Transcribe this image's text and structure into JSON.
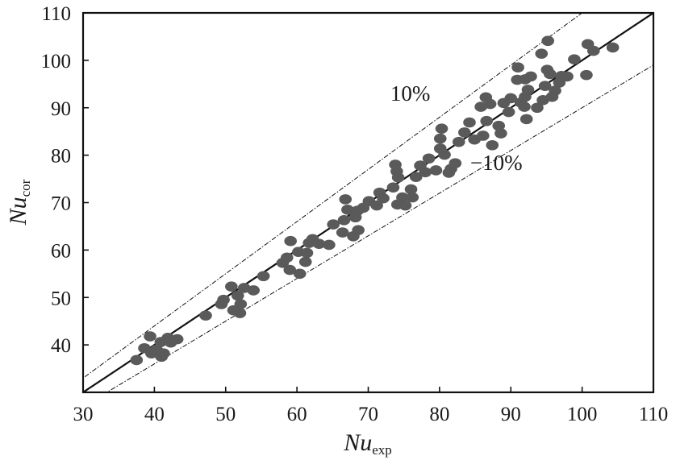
{
  "chart_data": {
    "type": "scatter",
    "xlabel": {
      "main": "Nu",
      "sub": "exp"
    },
    "ylabel": {
      "main": "Nu",
      "sub": "cor"
    },
    "xlim": [
      30,
      110
    ],
    "ylim": [
      30,
      110
    ],
    "x_ticks": [
      30,
      40,
      50,
      60,
      70,
      80,
      90,
      100,
      110
    ],
    "y_ticks": [
      40,
      50,
      60,
      70,
      80,
      90,
      100,
      110
    ],
    "grid": false,
    "colors": {
      "points": "#5a5a5a",
      "lines": "#111111",
      "frame": "#111111"
    },
    "reference_lines": [
      {
        "label": "",
        "slope": 1.0,
        "style": "solid"
      },
      {
        "label": "10%",
        "slope": 1.1,
        "style": "dash-dot"
      },
      {
        "label": "−10%",
        "slope": 0.9,
        "style": "dash-dot"
      }
    ],
    "points": [
      [
        37.5,
        36.8
      ],
      [
        38.6,
        39.3
      ],
      [
        39.4,
        41.8
      ],
      [
        39.6,
        38.2
      ],
      [
        40.3,
        39.0
      ],
      [
        40.9,
        40.6
      ],
      [
        41.0,
        37.5
      ],
      [
        41.3,
        38.2
      ],
      [
        41.9,
        41.5
      ],
      [
        42.3,
        40.5
      ],
      [
        43.2,
        41.2
      ],
      [
        47.2,
        46.2
      ],
      [
        49.4,
        48.6
      ],
      [
        49.7,
        49.5
      ],
      [
        50.8,
        52.3
      ],
      [
        51.1,
        47.3
      ],
      [
        51.7,
        50.4
      ],
      [
        52.0,
        46.7
      ],
      [
        52.1,
        48.6
      ],
      [
        52.6,
        52.0
      ],
      [
        53.9,
        51.5
      ],
      [
        55.3,
        54.5
      ],
      [
        58.0,
        57.3
      ],
      [
        58.6,
        58.4
      ],
      [
        59.0,
        55.8
      ],
      [
        59.1,
        61.9
      ],
      [
        60.2,
        59.6
      ],
      [
        60.4,
        55.0
      ],
      [
        61.2,
        57.5
      ],
      [
        61.4,
        59.4
      ],
      [
        61.7,
        61.5
      ],
      [
        62.2,
        62.3
      ],
      [
        63.1,
        61.3
      ],
      [
        64.5,
        61.1
      ],
      [
        65.1,
        65.4
      ],
      [
        66.4,
        63.7
      ],
      [
        66.6,
        66.3
      ],
      [
        66.8,
        70.7
      ],
      [
        67.1,
        68.5
      ],
      [
        67.9,
        62.9
      ],
      [
        68.2,
        66.9
      ],
      [
        68.5,
        68.3
      ],
      [
        68.6,
        64.2
      ],
      [
        69.3,
        68.9
      ],
      [
        70.1,
        70.3
      ],
      [
        71.2,
        69.4
      ],
      [
        71.6,
        72.1
      ],
      [
        72.1,
        70.9
      ],
      [
        73.5,
        73.2
      ],
      [
        73.8,
        78.0
      ],
      [
        74.0,
        76.6
      ],
      [
        74.1,
        69.6
      ],
      [
        74.2,
        75.3
      ],
      [
        74.8,
        71.1
      ],
      [
        75.2,
        69.4
      ],
      [
        76.0,
        72.8
      ],
      [
        76.2,
        71.1
      ],
      [
        76.7,
        75.4
      ],
      [
        77.3,
        77.8
      ],
      [
        78.0,
        76.4
      ],
      [
        78.5,
        79.3
      ],
      [
        79.5,
        76.8
      ],
      [
        80.1,
        81.4
      ],
      [
        80.1,
        83.5
      ],
      [
        80.3,
        85.6
      ],
      [
        80.7,
        80.1
      ],
      [
        81.3,
        76.3
      ],
      [
        81.6,
        77.1
      ],
      [
        82.2,
        78.3
      ],
      [
        82.7,
        82.8
      ],
      [
        83.5,
        84.8
      ],
      [
        84.2,
        86.9
      ],
      [
        84.9,
        83.3
      ],
      [
        85.8,
        90.2
      ],
      [
        86.1,
        84.1
      ],
      [
        86.5,
        92.2
      ],
      [
        86.6,
        87.2
      ],
      [
        87.1,
        90.8
      ],
      [
        87.4,
        82.1
      ],
      [
        88.3,
        86.2
      ],
      [
        88.6,
        84.6
      ],
      [
        89.0,
        91.0
      ],
      [
        89.7,
        89.1
      ],
      [
        90.0,
        92.0
      ],
      [
        90.9,
        95.9
      ],
      [
        91.0,
        98.5
      ],
      [
        91.4,
        91.1
      ],
      [
        91.9,
        90.2
      ],
      [
        92.0,
        92.3
      ],
      [
        92.0,
        96.0
      ],
      [
        92.2,
        87.6
      ],
      [
        92.4,
        93.8
      ],
      [
        92.8,
        96.6
      ],
      [
        93.7,
        90.0
      ],
      [
        94.3,
        101.4
      ],
      [
        94.5,
        91.6
      ],
      [
        94.8,
        94.6
      ],
      [
        95.1,
        98.0
      ],
      [
        95.2,
        104.1
      ],
      [
        95.5,
        97.1
      ],
      [
        95.8,
        92.3
      ],
      [
        96.2,
        93.6
      ],
      [
        96.8,
        95.3
      ],
      [
        97.1,
        96.7
      ],
      [
        97.9,
        96.6
      ],
      [
        98.9,
        100.2
      ],
      [
        100.6,
        96.9
      ],
      [
        100.8,
        103.4
      ],
      [
        101.6,
        102.0
      ],
      [
        104.3,
        102.7
      ]
    ]
  }
}
